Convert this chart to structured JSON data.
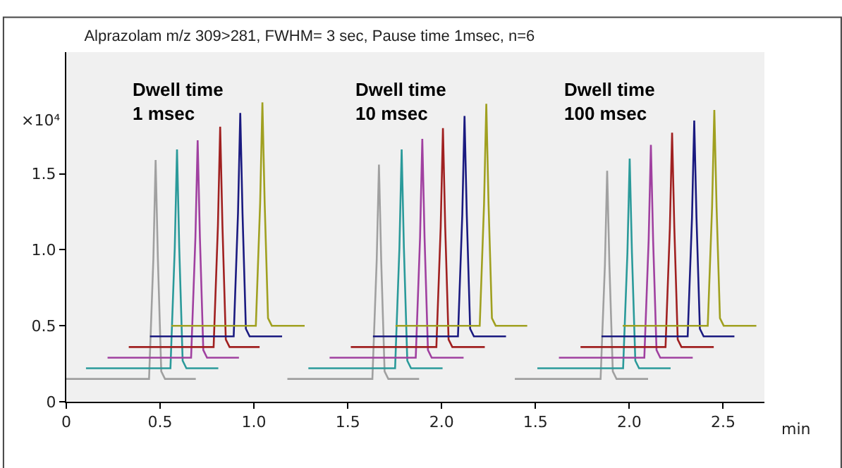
{
  "chart_data": {
    "type": "line",
    "title": "Alprazolam m/z 309>281, FWHM= 3 sec, Pause time 1msec, n=6",
    "xlabel": "min",
    "ylabel": "×10⁴",
    "annotations": [
      "Dwell time\n1 msec",
      "Dwell time\n10 msec",
      "Dwell time\n100 msec"
    ],
    "xlim": [
      0,
      3.72
    ],
    "ylim": [
      0,
      2.3
    ],
    "xticks": [
      0,
      0.5,
      {
        "value": 1,
        "label": "1.0"
      },
      1.5,
      {
        "value": 2,
        "label": "2.0"
      }
    ],
    "x2lim": [
      -1,
      2.72
    ],
    "x2ticks": [
      1.5,
      {
        "value": 2,
        "label": "2.0"
      },
      2.5
    ],
    "yticks": [
      0,
      0.5,
      {
        "value": 1,
        "label": "1.0"
      },
      1.5
    ],
    "grid": false,
    "marker": "none",
    "line_style": "solid",
    "series": [
      {
        "color": "#a0a0a0",
        "x": [
          0,
          0.441,
          0.464,
          0.476,
          0.488,
          0.506,
          0.526,
          0.69
        ],
        "values": [
          0.15,
          0.15,
          0.94,
          1.59,
          0.94,
          0.2,
          0.15,
          0.15
        ]
      },
      {
        "color": "#2a9a9a",
        "x": [
          0.105,
          0.555,
          0.578,
          0.59,
          0.602,
          0.62,
          0.64,
          0.81
        ],
        "values": [
          0.22,
          0.22,
          1.01,
          1.66,
          1.01,
          0.27,
          0.22,
          0.22
        ]
      },
      {
        "color": "#a040a0",
        "x": [
          0.22,
          0.665,
          0.688,
          0.7,
          0.712,
          0.73,
          0.75,
          0.92
        ],
        "values": [
          0.29,
          0.29,
          1.08,
          1.72,
          1.08,
          0.34,
          0.29,
          0.29
        ]
      },
      {
        "color": "#a02020",
        "x": [
          0.333,
          0.785,
          0.808,
          0.82,
          0.832,
          0.85,
          0.87,
          1.03
        ],
        "values": [
          0.36,
          0.36,
          1.16,
          1.81,
          1.16,
          0.41,
          0.36,
          0.36
        ]
      },
      {
        "color": "#1a1a80",
        "x": [
          0.446,
          0.892,
          0.915,
          0.927,
          0.939,
          0.957,
          0.977,
          1.15
        ],
        "values": [
          0.43,
          0.43,
          1.24,
          1.9,
          1.24,
          0.48,
          0.43,
          0.43
        ]
      },
      {
        "color": "#a0a020",
        "x": [
          0.56,
          1.01,
          1.033,
          1.045,
          1.057,
          1.075,
          1.095,
          1.27
        ],
        "values": [
          0.5,
          0.5,
          1.31,
          1.97,
          1.31,
          0.55,
          0.5,
          0.5
        ]
      },
      {
        "color": "#a0a0a0",
        "x": [
          1.178,
          1.631,
          1.654,
          1.666,
          1.678,
          1.696,
          1.716,
          1.88
        ],
        "values": [
          0.15,
          0.15,
          0.93,
          1.56,
          0.93,
          0.2,
          0.15,
          0.15
        ]
      },
      {
        "color": "#2a9a9a",
        "x": [
          1.29,
          1.752,
          1.775,
          1.787,
          1.799,
          1.817,
          1.837,
          2.005
        ],
        "values": [
          0.22,
          0.22,
          1.01,
          1.66,
          1.01,
          0.27,
          0.22,
          0.22
        ]
      },
      {
        "color": "#a040a0",
        "x": [
          1.403,
          1.862,
          1.885,
          1.897,
          1.909,
          1.927,
          1.947,
          2.117
        ],
        "values": [
          0.29,
          0.29,
          1.08,
          1.73,
          1.08,
          0.34,
          0.29,
          0.29
        ]
      },
      {
        "color": "#a02020",
        "x": [
          1.516,
          1.972,
          1.995,
          2.007,
          2.019,
          2.037,
          2.057,
          2.23
        ],
        "values": [
          0.36,
          0.36,
          1.15,
          1.8,
          1.15,
          0.41,
          0.36,
          0.36
        ]
      },
      {
        "color": "#1a1a80",
        "x": [
          1.634,
          2.087,
          2.11,
          2.122,
          2.134,
          2.152,
          2.172,
          2.343
        ],
        "values": [
          0.43,
          0.43,
          1.23,
          1.88,
          1.23,
          0.48,
          0.43,
          0.43
        ]
      },
      {
        "color": "#a0a020",
        "x": [
          1.754,
          2.203,
          2.226,
          2.238,
          2.25,
          2.268,
          2.288,
          2.456
        ],
        "values": [
          0.5,
          0.5,
          1.3,
          1.96,
          1.3,
          0.55,
          0.5,
          0.5
        ]
      },
      {
        "color": "#a0a0a0",
        "axis": "x2",
        "x": [
          1.39,
          1.847,
          1.87,
          1.882,
          1.894,
          1.912,
          1.932,
          2.1
        ],
        "values": [
          0.15,
          0.15,
          0.9,
          1.52,
          0.9,
          0.2,
          0.15,
          0.15
        ]
      },
      {
        "color": "#2a9a9a",
        "axis": "x2",
        "x": [
          1.51,
          1.967,
          1.99,
          2.002,
          2.014,
          2.032,
          2.052,
          2.22
        ],
        "values": [
          0.22,
          0.22,
          0.98,
          1.6,
          0.98,
          0.27,
          0.22,
          0.22
        ]
      },
      {
        "color": "#a040a0",
        "axis": "x2",
        "x": [
          1.625,
          2.08,
          2.103,
          2.115,
          2.127,
          2.145,
          2.165,
          2.338
        ],
        "values": [
          0.29,
          0.29,
          1.06,
          1.69,
          1.06,
          0.34,
          0.29,
          0.29
        ]
      },
      {
        "color": "#a02020",
        "axis": "x2",
        "x": [
          1.74,
          2.193,
          2.216,
          2.228,
          2.24,
          2.258,
          2.278,
          2.45
        ],
        "values": [
          0.36,
          0.36,
          1.14,
          1.77,
          1.14,
          0.41,
          0.36,
          0.36
        ]
      },
      {
        "color": "#1a1a80",
        "axis": "x2",
        "x": [
          1.852,
          2.311,
          2.334,
          2.346,
          2.358,
          2.376,
          2.396,
          2.56
        ],
        "values": [
          0.43,
          0.43,
          1.21,
          1.85,
          1.21,
          0.48,
          0.43,
          0.43
        ]
      },
      {
        "color": "#a0a020",
        "axis": "x2",
        "x": [
          1.965,
          2.418,
          2.441,
          2.453,
          2.465,
          2.483,
          2.503,
          2.677
        ],
        "values": [
          0.5,
          0.5,
          1.28,
          1.92,
          1.28,
          0.55,
          0.5,
          0.5
        ]
      }
    ]
  }
}
